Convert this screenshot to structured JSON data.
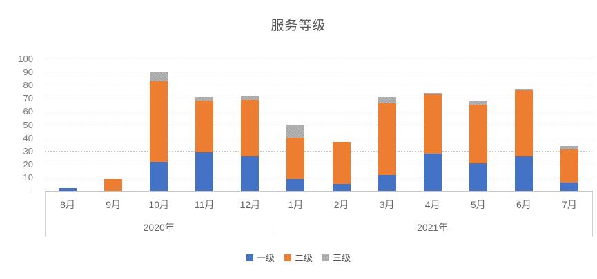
{
  "chart_data": {
    "type": "bar",
    "stacked": true,
    "title": "服务等级",
    "categories": [
      "8月",
      "9月",
      "10月",
      "11月",
      "12月",
      "1月",
      "2月",
      "3月",
      "4月",
      "5月",
      "6月",
      "7月"
    ],
    "group_labels": [
      {
        "label": "2020年",
        "span": [
          0,
          4
        ]
      },
      {
        "label": "2021年",
        "span": [
          5,
          11
        ]
      }
    ],
    "series": [
      {
        "name": "一级",
        "color": "#4472C4",
        "texture": "solid",
        "values": [
          2,
          0,
          22,
          29,
          26,
          9,
          5,
          12,
          28,
          21,
          26,
          6
        ]
      },
      {
        "name": "二级",
        "color": "#ED7D31",
        "texture": "solid",
        "values": [
          0,
          9,
          61,
          39,
          43,
          31,
          32,
          54,
          45,
          44,
          50,
          25
        ]
      },
      {
        "name": "三级",
        "color": "#A5A5A5",
        "texture": "hatch",
        "values": [
          0,
          0,
          7,
          3,
          3,
          10,
          0,
          5,
          1,
          3,
          1,
          3
        ]
      }
    ],
    "totals": [
      2,
      9,
      90,
      71,
      72,
      50,
      37,
      71,
      74,
      68,
      77,
      34
    ],
    "ylim": [
      0,
      100
    ],
    "y_ticks": [
      "100",
      "90",
      "80",
      "70",
      "60",
      "50",
      "40",
      "30",
      "20",
      "10",
      "-"
    ],
    "grid": true,
    "legend_position": "bottom",
    "xlabel": "",
    "ylabel": ""
  },
  "colors": {
    "series_blue": "#4472C4",
    "series_orange": "#ED7D31",
    "series_gray": "#A5A5A5",
    "title_text": "#595959",
    "axis_text": "#7a7a7a",
    "gridline": "#cbcbcb",
    "axis_line": "#cfcfcf",
    "background": "#ffffff"
  }
}
